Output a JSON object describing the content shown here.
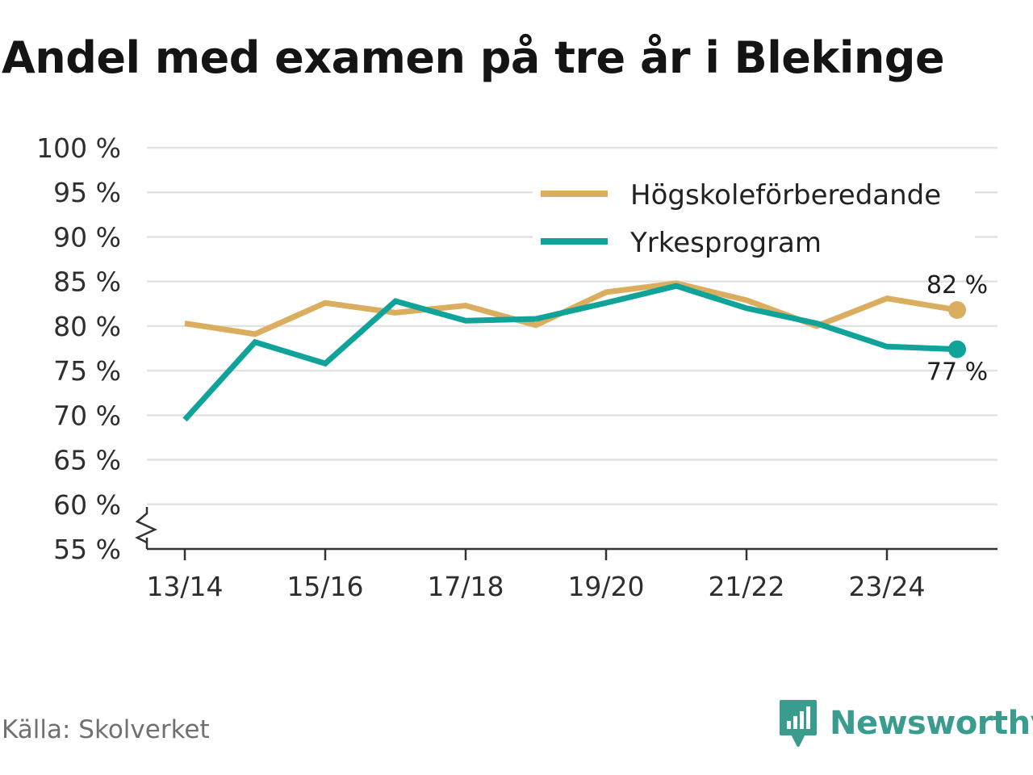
{
  "chart_data": {
    "type": "line",
    "title": "Andel med examen på tre år i Blekinge",
    "source": "Källa: Skolverket",
    "x": [
      "13/14",
      "14/15",
      "15/16",
      "16/17",
      "17/18",
      "18/19",
      "19/20",
      "20/21",
      "21/22",
      "22/23",
      "23/24",
      "24/25"
    ],
    "x_tick_labels": [
      "13/14",
      "15/16",
      "17/18",
      "19/20",
      "21/22",
      "23/24"
    ],
    "y_tick_labels": [
      "100 %",
      "95 %",
      "90 %",
      "85 %",
      "80 %",
      "75 %",
      "70 %",
      "65 %",
      "60 %",
      "55 %"
    ],
    "ylim": [
      55,
      100
    ],
    "y_axis_break": true,
    "grid": true,
    "legend_position": "top-right",
    "series": [
      {
        "name": "Högskoleförberedande",
        "color": "#dbad5e",
        "values": [
          80.3,
          79.1,
          82.6,
          81.5,
          82.3,
          80.1,
          83.8,
          84.8,
          82.9,
          80.0,
          83.1,
          81.8
        ],
        "end_label": "82 %"
      },
      {
        "name": "Yrkesprogram",
        "color": "#0fa399",
        "values": [
          69.5,
          78.2,
          75.8,
          82.8,
          80.6,
          80.8,
          82.6,
          84.5,
          82.0,
          80.3,
          77.7,
          77.4
        ],
        "end_label": "77 %"
      }
    ]
  },
  "brand": {
    "name": "Newsworthy",
    "icon": "newsworthy-logo-icon",
    "color": "#3a9b8f"
  }
}
